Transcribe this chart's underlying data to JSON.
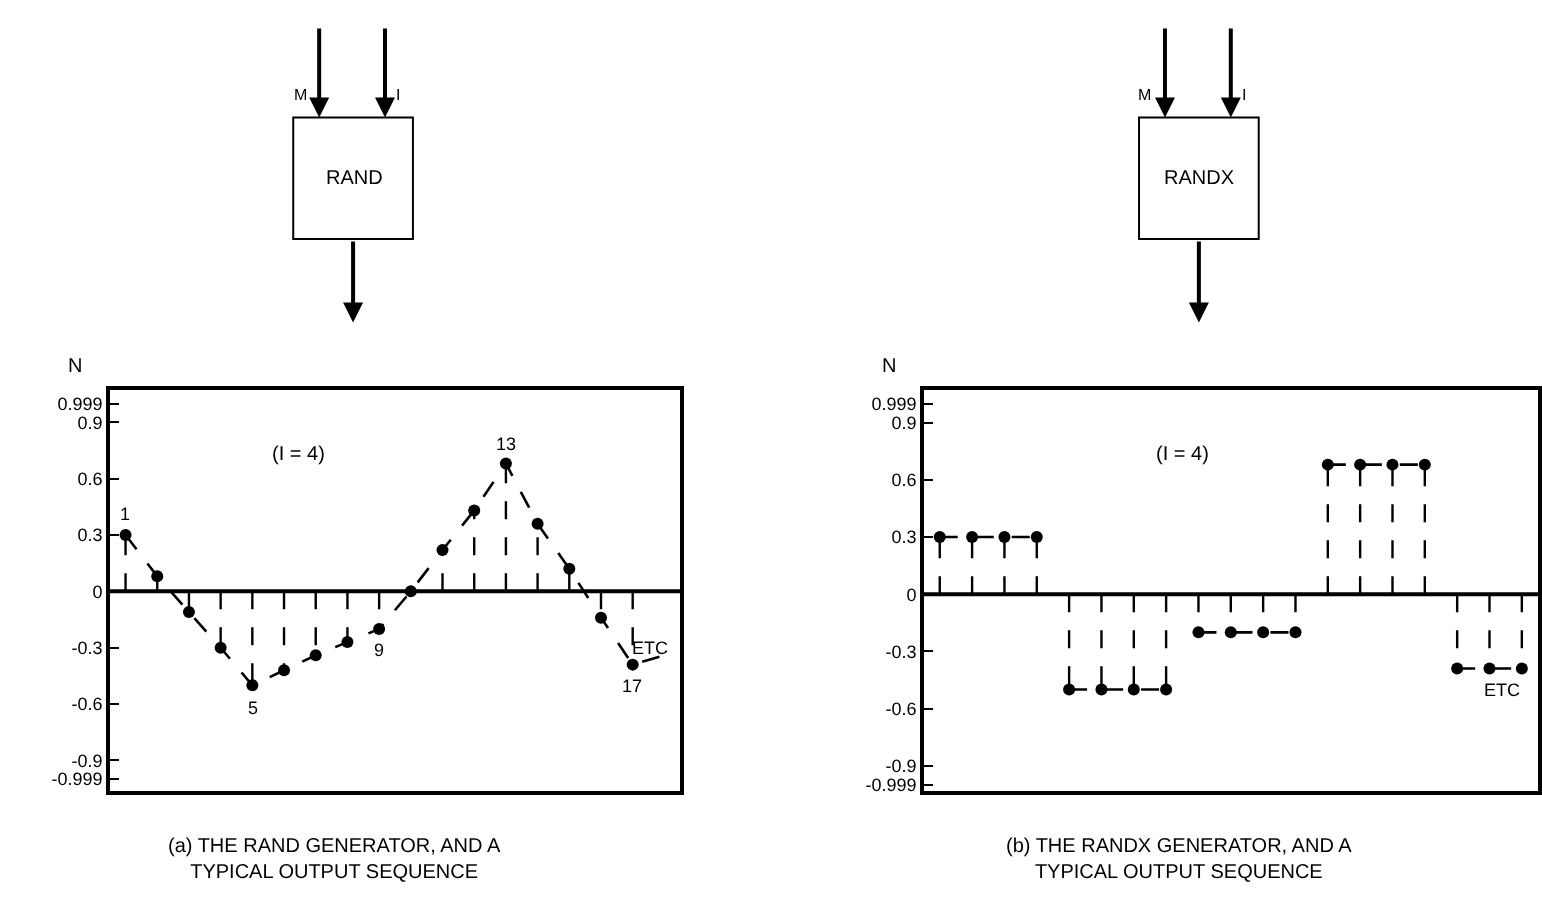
{
  "chart_data": [
    {
      "type": "lollipop",
      "ylabel": "N",
      "categories": [
        null,
        null,
        null,
        null,
        null,
        null,
        null,
        null,
        null,
        null,
        null,
        null,
        null,
        null,
        null,
        null,
        null,
        null
      ],
      "ylim": [
        -1.06,
        1.07
      ],
      "yticks": [
        0.999,
        0.9,
        0.6,
        0.3,
        0,
        -0.3,
        -0.6,
        -0.9,
        -0.999
      ],
      "tick_labels": "y",
      "marker": "circle",
      "series": [
        {
          "color": "#000000",
          "line_style": "dashed",
          "values": [
            0.3,
            0.08,
            -0.11,
            -0.3,
            -0.5,
            -0.42,
            -0.34,
            -0.27,
            -0.2,
            0,
            0.22,
            0.43,
            0.68,
            0.36,
            0.12,
            -0.14,
            -0.39,
            null
          ]
        },
        {
          "type": "line",
          "color": "#000000",
          "line_style": "dashed",
          "marker": "none",
          "values": [
            0.3,
            0.08,
            -0.11,
            -0.3,
            -0.5,
            -0.42,
            -0.34,
            -0.27,
            -0.2,
            0,
            0.22,
            0.43,
            0.68,
            0.36,
            0.12,
            -0.14,
            -0.39,
            -0.34
          ]
        }
      ],
      "ref_lines": [
        {
          "axis": "y",
          "value": 0,
          "color": "#000000",
          "line_style": "solid"
        }
      ],
      "annotations": [
        {
          "text": "1",
          "y": 0.3
        },
        {
          "text": "5",
          "y": -0.5
        },
        {
          "text": "9",
          "y": -0.2
        },
        {
          "text": "13",
          "y": 0.68
        },
        {
          "text": "17",
          "y": -0.39
        },
        "ETC",
        "(I = 4)",
        "M",
        "I",
        "RAND",
        "(a) THE RAND GENERATOR, AND A\nTYPICAL OUTPUT SEQUENCE"
      ]
    },
    {
      "type": "lollipop",
      "ylabel": "N",
      "categories": [
        null,
        null,
        null,
        null,
        null,
        null,
        null,
        null,
        null,
        null,
        null,
        null,
        null,
        null,
        null,
        null,
        null,
        null,
        null
      ],
      "ylim": [
        -1.03,
        1.07
      ],
      "yticks": [
        0.999,
        0.9,
        0.6,
        0.3,
        0,
        -0.3,
        -0.6,
        -0.9,
        -0.999
      ],
      "tick_labels": "y",
      "marker": "circle",
      "series": [
        {
          "color": "#000000",
          "line_style": "dashed",
          "values": [
            0.3,
            0.3,
            0.3,
            0.3,
            -0.5,
            -0.5,
            -0.5,
            -0.5,
            -0.2,
            -0.2,
            -0.2,
            -0.2,
            0.68,
            0.68,
            0.68,
            0.68,
            -0.39,
            -0.39,
            -0.39
          ]
        },
        {
          "type": "line",
          "color": "#000000",
          "line_style": "dashed",
          "marker": "none",
          "values": [
            0.3,
            0.3,
            0.3,
            0.3,
            null,
            null,
            null,
            null,
            null,
            null,
            null,
            null,
            null,
            null,
            null,
            null,
            null,
            null,
            null
          ]
        },
        {
          "type": "line",
          "color": "#000000",
          "line_style": "dashed",
          "marker": "none",
          "values": [
            null,
            null,
            null,
            null,
            -0.5,
            -0.5,
            -0.5,
            -0.5,
            null,
            null,
            null,
            null,
            null,
            null,
            null,
            null,
            null,
            null,
            null
          ]
        },
        {
          "type": "line",
          "color": "#000000",
          "line_style": "dashed",
          "marker": "none",
          "values": [
            null,
            null,
            null,
            null,
            null,
            null,
            null,
            null,
            -0.2,
            -0.2,
            -0.2,
            -0.2,
            null,
            null,
            null,
            null,
            null,
            null,
            null
          ]
        },
        {
          "type": "line",
          "color": "#000000",
          "line_style": "dashed",
          "marker": "none",
          "values": [
            null,
            null,
            null,
            null,
            null,
            null,
            null,
            null,
            null,
            null,
            null,
            null,
            0.68,
            0.68,
            0.68,
            0.68,
            null,
            null,
            null
          ]
        },
        {
          "type": "line",
          "color": "#000000",
          "line_style": "dashed",
          "marker": "none",
          "values": [
            null,
            null,
            null,
            null,
            null,
            null,
            null,
            null,
            null,
            null,
            null,
            null,
            null,
            null,
            null,
            null,
            -0.39,
            -0.39,
            -0.39
          ]
        }
      ],
      "ref_lines": [
        {
          "axis": "y",
          "value": 0,
          "color": "#000000",
          "line_style": "solid"
        }
      ],
      "annotations": [
        "ETC",
        "(I = 4)",
        "M",
        "I",
        "RANDX",
        "(b) THE RANDX GENERATOR, AND A\nTYPICAL OUTPUT SEQUENCE"
      ]
    }
  ]
}
